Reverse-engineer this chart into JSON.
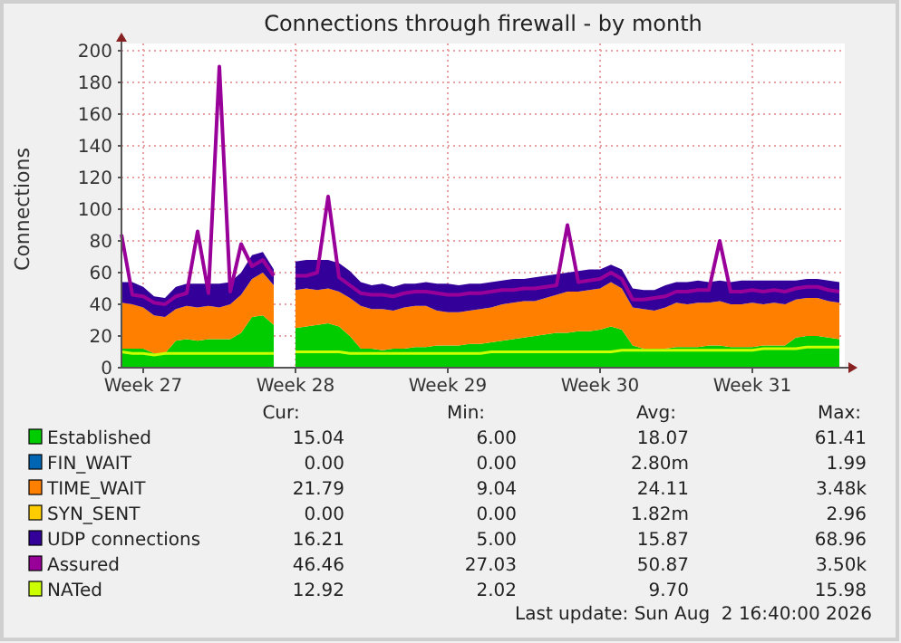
{
  "chart_data": {
    "type": "area",
    "stacked": true,
    "title": "Connections through firewall - by month",
    "ylabel": "Connections",
    "categories": [
      null,
      null,
      "Week 27",
      null,
      null,
      null,
      null,
      null,
      null,
      null,
      null,
      null,
      null,
      null,
      null,
      null,
      "Week 28",
      null,
      null,
      null,
      null,
      null,
      null,
      null,
      null,
      null,
      null,
      null,
      null,
      null,
      "Week 29",
      null,
      null,
      null,
      null,
      null,
      null,
      null,
      null,
      null,
      null,
      null,
      null,
      null,
      "Week 30",
      null,
      null,
      null,
      null,
      null,
      null,
      null,
      null,
      null,
      null,
      null,
      null,
      null,
      "Week 31",
      null,
      null,
      null,
      null,
      null,
      null,
      null,
      null
    ],
    "ylim": [
      0,
      200
    ],
    "yticks": [
      0,
      20,
      40,
      60,
      80,
      100,
      120,
      140,
      160,
      180,
      200
    ],
    "grid": true,
    "legend": "bottom",
    "series": [
      {
        "name": "Established",
        "color": "#00cc00",
        "values": [
          12,
          12,
          12,
          9,
          9,
          17,
          18,
          17,
          18,
          18,
          18,
          22,
          32,
          33,
          27,
          null,
          25,
          26,
          27,
          28,
          26,
          20,
          12,
          12,
          11,
          12,
          12,
          13,
          13,
          14,
          14,
          14,
          15,
          15,
          16,
          17,
          18,
          19,
          20,
          21,
          22,
          22,
          23,
          23,
          24,
          26,
          24,
          14,
          12,
          12,
          12,
          13,
          13,
          13,
          14,
          14,
          13,
          13,
          13,
          14,
          14,
          14,
          19,
          20,
          20,
          19,
          18
        ]
      },
      {
        "name": "FIN_WAIT",
        "color": "#0066b3",
        "values": [
          null,
          null,
          null,
          null,
          null,
          null,
          null,
          null,
          null,
          null,
          null,
          null,
          null,
          null,
          null,
          null,
          null,
          null,
          null,
          null,
          null,
          null,
          null,
          null,
          null,
          null,
          null,
          null,
          null,
          null,
          null,
          null,
          null,
          null,
          null,
          null,
          null,
          null,
          null,
          null,
          null,
          null,
          null,
          null,
          null,
          null,
          null,
          null,
          null,
          null,
          null,
          null,
          null,
          null,
          null,
          null,
          null,
          null,
          null,
          null,
          null,
          null,
          null,
          null,
          null,
          null,
          null
        ]
      },
      {
        "name": "TIME_WAIT",
        "color": "#ff8000",
        "values": [
          29,
          28,
          26,
          24,
          23,
          20,
          21,
          21,
          21,
          20,
          22,
          24,
          24,
          27,
          25,
          null,
          24,
          24,
          22,
          22,
          22,
          24,
          27,
          25,
          26,
          24,
          26,
          26,
          26,
          22,
          21,
          21,
          21,
          22,
          22,
          23,
          23,
          23,
          22,
          23,
          24,
          26,
          25,
          26,
          26,
          28,
          26,
          24,
          25,
          24,
          26,
          28,
          27,
          28,
          27,
          28,
          27,
          27,
          28,
          26,
          27,
          26,
          24,
          24,
          24,
          23,
          23
        ]
      },
      {
        "name": "SYN_SENT",
        "color": "#ffcc00",
        "values": [
          null,
          null,
          null,
          null,
          null,
          null,
          null,
          null,
          null,
          null,
          null,
          null,
          null,
          null,
          null,
          null,
          null,
          null,
          null,
          null,
          null,
          null,
          null,
          null,
          null,
          null,
          null,
          null,
          null,
          null,
          null,
          null,
          null,
          null,
          null,
          null,
          null,
          null,
          null,
          null,
          null,
          null,
          null,
          null,
          null,
          null,
          null,
          null,
          null,
          null,
          null,
          null,
          null,
          null,
          null,
          null,
          null,
          null,
          null,
          null,
          null,
          null,
          null,
          null,
          null,
          null,
          null
        ]
      },
      {
        "name": "UDP connections",
        "color": "#330099",
        "values": [
          13,
          14,
          13,
          12,
          12,
          14,
          14,
          15,
          14,
          15,
          14,
          14,
          15,
          13,
          10,
          null,
          18,
          18,
          19,
          18,
          18,
          17,
          15,
          15,
          16,
          15,
          15,
          14,
          15,
          17,
          18,
          17,
          17,
          16,
          16,
          15,
          15,
          14,
          15,
          14,
          13,
          12,
          13,
          13,
          12,
          11,
          12,
          12,
          12,
          13,
          14,
          13,
          14,
          14,
          13,
          13,
          14,
          15,
          14,
          15,
          14,
          15,
          12,
          12,
          12,
          13,
          13
        ]
      },
      {
        "name": "Assured",
        "color": "#990099",
        "type": "line",
        "values": [
          84,
          46,
          45,
          41,
          40,
          45,
          47,
          86,
          47,
          190,
          48,
          78,
          64,
          68,
          58,
          null,
          58,
          58,
          60,
          108,
          57,
          52,
          47,
          46,
          46,
          45,
          47,
          48,
          48,
          47,
          46,
          46,
          47,
          47,
          48,
          49,
          49,
          50,
          50,
          51,
          52,
          90,
          54,
          55,
          56,
          60,
          56,
          43,
          43,
          44,
          45,
          48,
          48,
          49,
          49,
          80,
          48,
          48,
          49,
          48,
          49,
          48,
          50,
          51,
          51,
          49,
          48
        ]
      },
      {
        "name": "NATed",
        "color": "#ccff00",
        "type": "line",
        "values": [
          10,
          9,
          9,
          8,
          9,
          9,
          9,
          9,
          9,
          9,
          9,
          9,
          9,
          9,
          9,
          null,
          10,
          10,
          10,
          10,
          10,
          9,
          9,
          9,
          9,
          9,
          9,
          9,
          9,
          9,
          9,
          9,
          9,
          9,
          10,
          10,
          10,
          10,
          10,
          10,
          10,
          10,
          10,
          10,
          10,
          10,
          11,
          11,
          11,
          11,
          11,
          11,
          11,
          11,
          11,
          11,
          11,
          11,
          11,
          12,
          12,
          12,
          12,
          13,
          13,
          13,
          13
        ]
      }
    ],
    "annotations": [
      "Cur:",
      "Min:",
      "Avg:",
      "Max:",
      "15.04",
      "6.00",
      "18.07",
      "61.41",
      "0.00",
      "0.00",
      "2.80m",
      "1.99",
      "21.79",
      "9.04",
      "24.11",
      "3.48k",
      "0.00",
      "0.00",
      "1.82m",
      "2.96",
      "16.21",
      "5.00",
      "15.87",
      "68.96",
      "46.46",
      "27.03",
      "50.87",
      "3.50k",
      "12.92",
      "2.02",
      "9.70",
      "15.98",
      "Last update: Sun Aug  2 16:40:00 2026"
    ]
  }
}
